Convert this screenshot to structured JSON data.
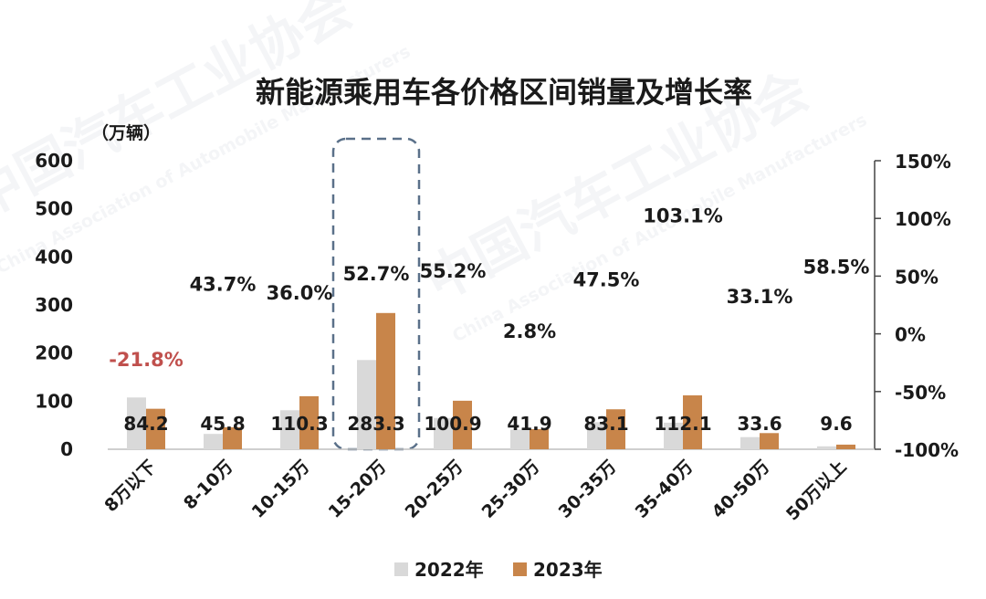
{
  "chart_data": {
    "type": "bar",
    "title": "新能源乘用车各价格区间销量及增长率",
    "y_unit_label": "（万辆）",
    "categories": [
      "8万以下",
      "8-10万",
      "10-15万",
      "15-20万",
      "20-25万",
      "25-30万",
      "30-35万",
      "35-40万",
      "40-50万",
      "50万以上"
    ],
    "series": [
      {
        "name": "2022年",
        "color": "#d9d9d9",
        "values": [
          107.7,
          31.9,
          81.1,
          185.5,
          65.0,
          40.8,
          56.3,
          55.2,
          25.2,
          6.1
        ]
      },
      {
        "name": "2023年",
        "color": "#c8854a",
        "values": [
          84.2,
          45.8,
          110.3,
          283.3,
          100.9,
          41.9,
          83.1,
          112.1,
          33.6,
          9.6
        ]
      }
    ],
    "value_labels": [
      "84.2",
      "45.8",
      "110.3",
      "283.3",
      "100.9",
      "41.9",
      "83.1",
      "112.1",
      "33.6",
      "9.6"
    ],
    "growth_rate": {
      "values": [
        -21.8,
        43.7,
        36.0,
        52.7,
        55.2,
        2.8,
        47.5,
        103.1,
        33.1,
        58.5
      ],
      "labels": [
        "-21.8%",
        "43.7%",
        "36.0%",
        "52.7%",
        "55.2%",
        "2.8%",
        "47.5%",
        "103.1%",
        "33.1%",
        "58.5%"
      ],
      "negative_color": "#c0504d"
    },
    "y_left": {
      "min": 0,
      "max": 600,
      "ticks": [
        "0",
        "100",
        "200",
        "300",
        "400",
        "500",
        "600"
      ]
    },
    "y_right": {
      "min": -100,
      "max": 150,
      "ticks": [
        "-100%",
        "-50%",
        "0%",
        "50%",
        "100%",
        "150%"
      ]
    },
    "highlight_category": "15-20万",
    "highlight_color": "#5a7089",
    "legend_position": "bottom-center",
    "grid": false
  },
  "watermark": {
    "cn": "中国汽车工业协会",
    "en": "China Association of Automobile Manufacturers"
  }
}
